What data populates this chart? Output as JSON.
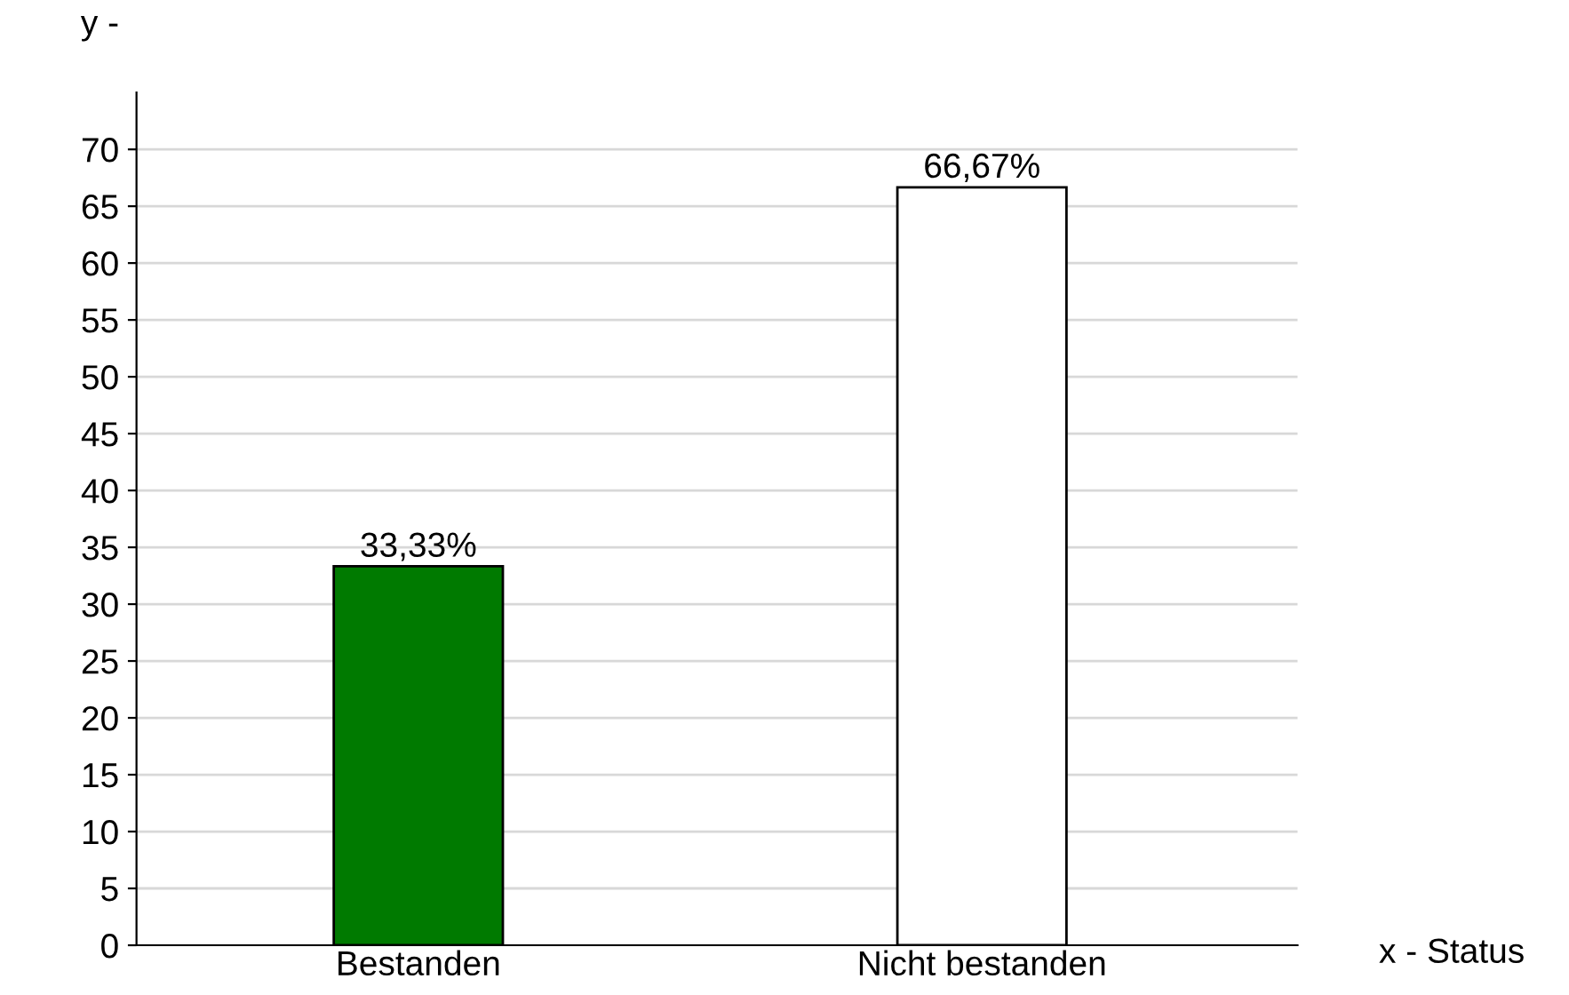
{
  "chart_data": {
    "type": "bar",
    "xlabel": "x - Status",
    "ylabel": "y -",
    "categories": [
      "Bestanden",
      "Nicht bestanden"
    ],
    "values": [
      33.33,
      66.67
    ],
    "value_labels": [
      "33,33%",
      "66,67%"
    ],
    "colors": [
      "#007a00",
      "#ffffff"
    ],
    "ylim": [
      0,
      75
    ],
    "yticks": [
      0,
      5,
      10,
      15,
      20,
      25,
      30,
      35,
      40,
      45,
      50,
      55,
      60,
      65,
      70
    ],
    "grid": "y",
    "legend": false
  }
}
